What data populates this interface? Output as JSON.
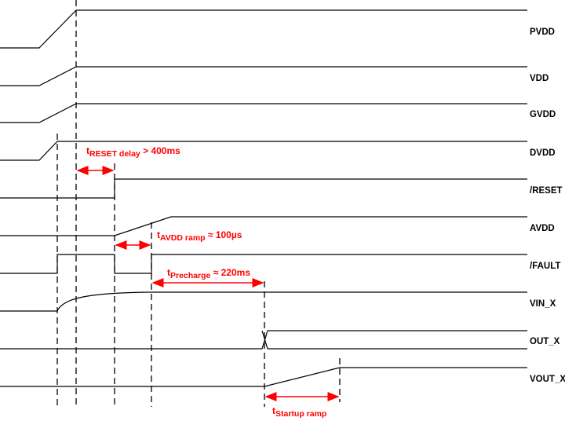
{
  "signals": [
    "PVDD",
    "VDD",
    "GVDD",
    "DVDD",
    "/RESET",
    "AVDD",
    "/FAULT",
    "VIN_X",
    "OUT_X",
    "VOUT_X"
  ],
  "annotations": {
    "reset_delay": {
      "t": "t",
      "sub": "RESET delay",
      "value": " > 400ms"
    },
    "avdd_ramp": {
      "t": "t",
      "sub": "AVDD ramp",
      "value": " ≈ 100µs"
    },
    "precharge": {
      "t": "t",
      "sub": "Precharge",
      "value": " ≈ 220ms"
    },
    "startup_ramp": {
      "t": "t",
      "sub": "Startup ramp",
      "value": ""
    }
  },
  "colors": {
    "annotation": "#ff0000",
    "signal": "#000000"
  }
}
